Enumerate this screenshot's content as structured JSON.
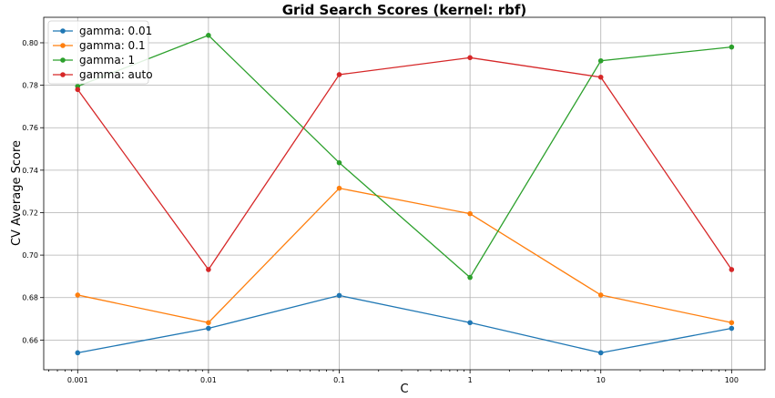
{
  "chart_data": {
    "type": "line",
    "title": "Grid Search Scores (kernel: rbf)",
    "xlabel": "C",
    "ylabel": "CV Average Score",
    "x_scale": "log",
    "x": [
      0.001,
      0.01,
      0.1,
      1,
      10,
      100
    ],
    "x_tick_labels": [
      "0.001",
      "0.01",
      "0.1",
      "1",
      "10",
      "100"
    ],
    "xlim": [
      0.00055,
      180
    ],
    "ylim": [
      0.646,
      0.812
    ],
    "y_ticks": [
      0.66,
      0.68,
      0.7,
      0.72,
      0.74,
      0.76,
      0.78,
      0.8
    ],
    "y_tick_labels": [
      "0.66",
      "0.68",
      "0.70",
      "0.72",
      "0.74",
      "0.76",
      "0.78",
      "0.80"
    ],
    "grid": true,
    "legend_position": "top-left",
    "series": [
      {
        "name": "gamma: 0.01",
        "color": "#1f77b4",
        "values": [
          0.654,
          0.6655,
          0.681,
          0.6682,
          0.654,
          0.6655
        ]
      },
      {
        "name": "gamma: 0.1",
        "color": "#ff7f0e",
        "values": [
          0.6812,
          0.6682,
          0.7315,
          0.7195,
          0.6812,
          0.6682
        ]
      },
      {
        "name": "gamma: 1",
        "color": "#2ca02c",
        "values": [
          0.7795,
          0.8035,
          0.7435,
          0.6895,
          0.7915,
          0.798
        ]
      },
      {
        "name": "gamma: auto",
        "color": "#d62728",
        "values": [
          0.778,
          0.6932,
          0.785,
          0.793,
          0.7838,
          0.6932
        ]
      }
    ]
  }
}
